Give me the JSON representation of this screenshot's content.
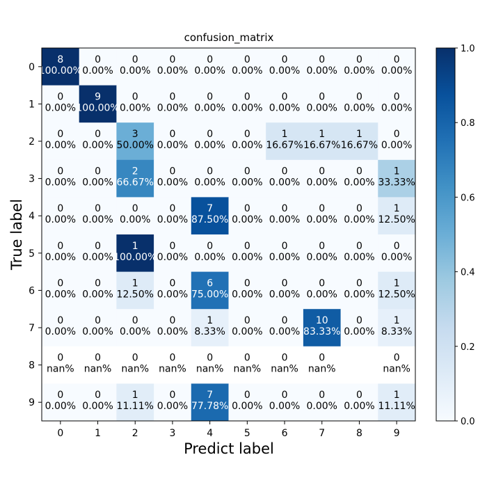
{
  "chart_data": {
    "type": "heatmap",
    "title": "confusion_matrix",
    "xlabel": "Predict label",
    "ylabel": "True label",
    "x_tick_labels": [
      "0",
      "1",
      "2",
      "3",
      "4",
      "5",
      "6",
      "7",
      "8",
      "9"
    ],
    "y_tick_labels": [
      "0",
      "1",
      "2",
      "3",
      "4",
      "5",
      "6",
      "7",
      "8",
      "9"
    ],
    "counts": [
      [
        8,
        0,
        0,
        0,
        0,
        0,
        0,
        0,
        0,
        0
      ],
      [
        0,
        9,
        0,
        0,
        0,
        0,
        0,
        0,
        0,
        0
      ],
      [
        0,
        0,
        3,
        0,
        0,
        0,
        1,
        1,
        1,
        0
      ],
      [
        0,
        0,
        2,
        0,
        0,
        0,
        0,
        0,
        0,
        1
      ],
      [
        0,
        0,
        0,
        0,
        7,
        0,
        0,
        0,
        0,
        1
      ],
      [
        0,
        0,
        1,
        0,
        0,
        0,
        0,
        0,
        0,
        0
      ],
      [
        0,
        0,
        1,
        0,
        6,
        0,
        0,
        0,
        0,
        1
      ],
      [
        0,
        0,
        0,
        0,
        1,
        0,
        0,
        10,
        0,
        1
      ],
      [
        0,
        0,
        0,
        0,
        0,
        0,
        0,
        0,
        null,
        0
      ],
      [
        0,
        0,
        1,
        0,
        7,
        0,
        0,
        0,
        0,
        1
      ]
    ],
    "percent_labels": [
      [
        "100.00%",
        "0.00%",
        "0.00%",
        "0.00%",
        "0.00%",
        "0.00%",
        "0.00%",
        "0.00%",
        "0.00%",
        "0.00%"
      ],
      [
        "0.00%",
        "100.00%",
        "0.00%",
        "0.00%",
        "0.00%",
        "0.00%",
        "0.00%",
        "0.00%",
        "0.00%",
        "0.00%"
      ],
      [
        "0.00%",
        "0.00%",
        "50.00%",
        "0.00%",
        "0.00%",
        "0.00%",
        "16.67%",
        "16.67%",
        "16.67%",
        "0.00%"
      ],
      [
        "0.00%",
        "0.00%",
        "66.67%",
        "0.00%",
        "0.00%",
        "0.00%",
        "0.00%",
        "0.00%",
        "0.00%",
        "33.33%"
      ],
      [
        "0.00%",
        "0.00%",
        "0.00%",
        "0.00%",
        "87.50%",
        "0.00%",
        "0.00%",
        "0.00%",
        "0.00%",
        "12.50%"
      ],
      [
        "0.00%",
        "0.00%",
        "100.00%",
        "0.00%",
        "0.00%",
        "0.00%",
        "0.00%",
        "0.00%",
        "0.00%",
        "0.00%"
      ],
      [
        "0.00%",
        "0.00%",
        "12.50%",
        "0.00%",
        "75.00%",
        "0.00%",
        "0.00%",
        "0.00%",
        "0.00%",
        "12.50%"
      ],
      [
        "0.00%",
        "0.00%",
        "0.00%",
        "0.00%",
        "8.33%",
        "0.00%",
        "0.00%",
        "83.33%",
        "0.00%",
        "8.33%"
      ],
      [
        "nan%",
        "nan%",
        "nan%",
        "nan%",
        "nan%",
        "nan%",
        "nan%",
        "nan%",
        null,
        "nan%"
      ],
      [
        "0.00%",
        "0.00%",
        "11.11%",
        "0.00%",
        "77.78%",
        "0.00%",
        "0.00%",
        "0.00%",
        "0.00%",
        "11.11%"
      ]
    ],
    "normalized_values": [
      [
        1.0,
        0,
        0,
        0,
        0,
        0,
        0,
        0,
        0,
        0
      ],
      [
        0,
        1.0,
        0,
        0,
        0,
        0,
        0,
        0,
        0,
        0
      ],
      [
        0,
        0,
        0.5,
        0,
        0,
        0,
        0.1667,
        0.1667,
        0.1667,
        0
      ],
      [
        0,
        0,
        0.6667,
        0,
        0,
        0,
        0,
        0,
        0,
        0.3333
      ],
      [
        0,
        0,
        0,
        0,
        0.875,
        0,
        0,
        0,
        0,
        0.125
      ],
      [
        0,
        0,
        1.0,
        0,
        0,
        0,
        0,
        0,
        0,
        0
      ],
      [
        0,
        0,
        0.125,
        0,
        0.75,
        0,
        0,
        0,
        0,
        0.125
      ],
      [
        0,
        0,
        0,
        0,
        0.0833,
        0,
        0,
        0.8333,
        0,
        0.0833
      ],
      [
        null,
        null,
        null,
        null,
        null,
        null,
        null,
        null,
        null,
        null
      ],
      [
        0,
        0,
        0.1111,
        0,
        0.7778,
        0,
        0,
        0,
        0,
        0.1111
      ]
    ],
    "colorbar": {
      "range": [
        0.0,
        1.0
      ],
      "ticks": [
        "0.0",
        "0.2",
        "0.4",
        "0.6",
        "0.8",
        "1.0"
      ],
      "colormap": "Blues"
    },
    "grid": false
  }
}
